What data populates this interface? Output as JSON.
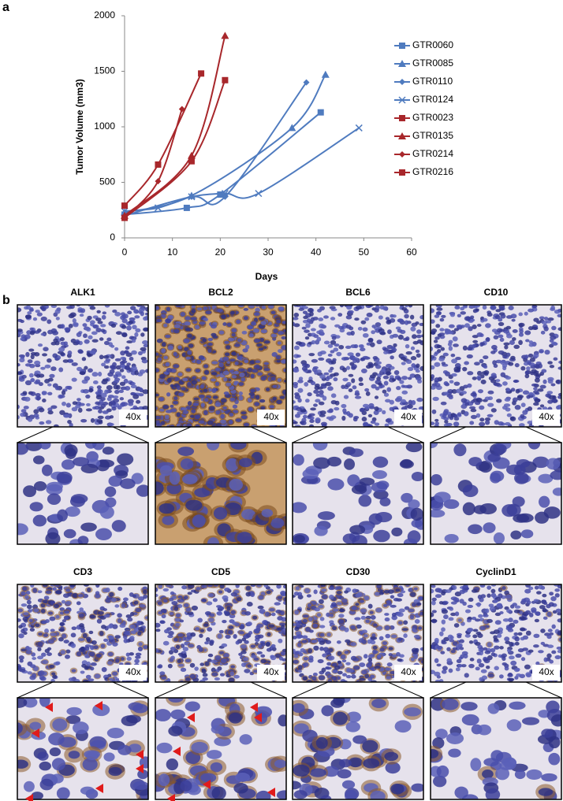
{
  "panel_a": {
    "label": "a"
  },
  "chart_data": {
    "type": "line",
    "xlabel": "Days",
    "ylabel": "Tumor Volume (mm3)",
    "xlim": [
      0,
      60
    ],
    "xticks": [
      0,
      10,
      20,
      30,
      40,
      50,
      60
    ],
    "ylim": [
      0,
      2000
    ],
    "yticks": [
      0,
      500,
      1000,
      1500,
      2000
    ],
    "grid": false,
    "legend": "right",
    "series": [
      {
        "name": "GTR0060",
        "color": "#4f7bbf",
        "marker": "square",
        "x": [
          0,
          13,
          20,
          41
        ],
        "values": [
          210,
          270,
          390,
          1130
        ]
      },
      {
        "name": "GTR0085",
        "color": "#4f7bbf",
        "marker": "triangle",
        "x": [
          0,
          14,
          35,
          42
        ],
        "values": [
          230,
          380,
          990,
          1470
        ]
      },
      {
        "name": "GTR0110",
        "color": "#4f7bbf",
        "marker": "diamond",
        "x": [
          0,
          14,
          21,
          38
        ],
        "values": [
          200,
          370,
          370,
          1400
        ]
      },
      {
        "name": "GTR0124",
        "color": "#4f7bbf",
        "marker": "x",
        "x": [
          0,
          7,
          14,
          21,
          28,
          49
        ],
        "values": [
          240,
          270,
          370,
          400,
          400,
          990
        ]
      },
      {
        "name": "GTR0023",
        "color": "#a8272b",
        "marker": "square",
        "x": [
          0,
          7,
          16
        ],
        "values": [
          290,
          660,
          1480
        ]
      },
      {
        "name": "GTR0135",
        "color": "#a8272b",
        "marker": "triangle",
        "x": [
          0,
          14,
          21
        ],
        "values": [
          200,
          740,
          1820
        ]
      },
      {
        "name": "GTR0214",
        "color": "#a8272b",
        "marker": "diamond",
        "x": [
          0,
          7,
          12
        ],
        "values": [
          180,
          510,
          1160
        ]
      },
      {
        "name": "GTR0216",
        "color": "#a8272b",
        "marker": "square",
        "x": [
          0,
          14,
          21
        ],
        "values": [
          180,
          690,
          1420
        ]
      }
    ]
  },
  "panel_b": {
    "label": "b",
    "stains": [
      {
        "marker": "ALK1",
        "magnification": "40x"
      },
      {
        "marker": "BCL2",
        "magnification": "40x"
      },
      {
        "marker": "BCL6",
        "magnification": "40x"
      },
      {
        "marker": "CD10",
        "magnification": "40x"
      },
      {
        "marker": "CD3",
        "magnification": "40x"
      },
      {
        "marker": "CD5",
        "magnification": "40x"
      },
      {
        "marker": "CD30",
        "magnification": "40x"
      },
      {
        "marker": "CyclinD1",
        "magnification": "40x"
      }
    ]
  }
}
